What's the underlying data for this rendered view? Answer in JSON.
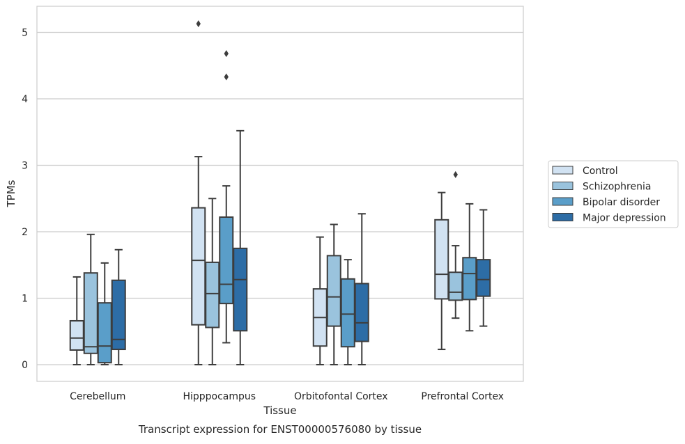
{
  "caption": "Transcript expression for ENST00000576080 by tissue",
  "chart_data": {
    "type": "box",
    "xlabel": "Tissue",
    "ylabel": "TPMs",
    "ylim": [
      -0.25,
      5.4
    ],
    "yticks": [
      0,
      1,
      2,
      3,
      4,
      5
    ],
    "grid": "horizontal",
    "legend_position": "right",
    "categories": [
      "Cerebellum",
      "Hipppocampus",
      "Orbitofontal Cortex",
      "Prefrontal Cortex"
    ],
    "series": [
      {
        "name": "Control",
        "color": "#d1e2f2",
        "boxes": [
          {
            "whislo": 0.0,
            "q1": 0.22,
            "med": 0.4,
            "q3": 0.66,
            "whishi": 1.32,
            "fliers": []
          },
          {
            "whislo": 0.0,
            "q1": 0.6,
            "med": 1.57,
            "q3": 2.36,
            "whishi": 3.13,
            "fliers": [
              5.13
            ]
          },
          {
            "whislo": 0.0,
            "q1": 0.28,
            "med": 0.71,
            "q3": 1.14,
            "whishi": 1.92,
            "fliers": []
          },
          {
            "whislo": 0.23,
            "q1": 0.99,
            "med": 1.36,
            "q3": 2.18,
            "whishi": 2.59,
            "fliers": []
          }
        ]
      },
      {
        "name": "Schizophrenia",
        "color": "#9ac3dd",
        "boxes": [
          {
            "whislo": 0.0,
            "q1": 0.17,
            "med": 0.27,
            "q3": 1.38,
            "whishi": 1.96,
            "fliers": []
          },
          {
            "whislo": 0.0,
            "q1": 0.56,
            "med": 1.07,
            "q3": 1.54,
            "whishi": 2.5,
            "fliers": []
          },
          {
            "whislo": 0.0,
            "q1": 0.58,
            "med": 1.02,
            "q3": 1.64,
            "whishi": 2.11,
            "fliers": []
          },
          {
            "whislo": 0.7,
            "q1": 0.97,
            "med": 1.09,
            "q3": 1.39,
            "whishi": 1.79,
            "fliers": [
              2.86
            ]
          }
        ]
      },
      {
        "name": "Bipolar disorder",
        "color": "#5a9ec9",
        "boxes": [
          {
            "whislo": 0.0,
            "q1": 0.03,
            "med": 0.28,
            "q3": 0.93,
            "whishi": 1.53,
            "fliers": []
          },
          {
            "whislo": 0.33,
            "q1": 0.92,
            "med": 1.21,
            "q3": 2.22,
            "whishi": 2.69,
            "fliers": [
              4.33,
              4.68
            ]
          },
          {
            "whislo": 0.0,
            "q1": 0.27,
            "med": 0.76,
            "q3": 1.29,
            "whishi": 1.58,
            "fliers": []
          },
          {
            "whislo": 0.51,
            "q1": 0.98,
            "med": 1.37,
            "q3": 1.61,
            "whishi": 2.42,
            "fliers": []
          }
        ]
      },
      {
        "name": "Major depression",
        "color": "#2d6da6",
        "boxes": [
          {
            "whislo": 0.0,
            "q1": 0.23,
            "med": 0.38,
            "q3": 1.27,
            "whishi": 1.73,
            "fliers": []
          },
          {
            "whislo": 0.0,
            "q1": 0.51,
            "med": 1.28,
            "q3": 1.75,
            "whishi": 3.52,
            "fliers": []
          },
          {
            "whislo": 0.0,
            "q1": 0.35,
            "med": 0.63,
            "q3": 1.22,
            "whishi": 2.27,
            "fliers": []
          },
          {
            "whislo": 0.58,
            "q1": 1.03,
            "med": 1.28,
            "q3": 1.58,
            "whishi": 2.33,
            "fliers": []
          }
        ]
      }
    ]
  }
}
